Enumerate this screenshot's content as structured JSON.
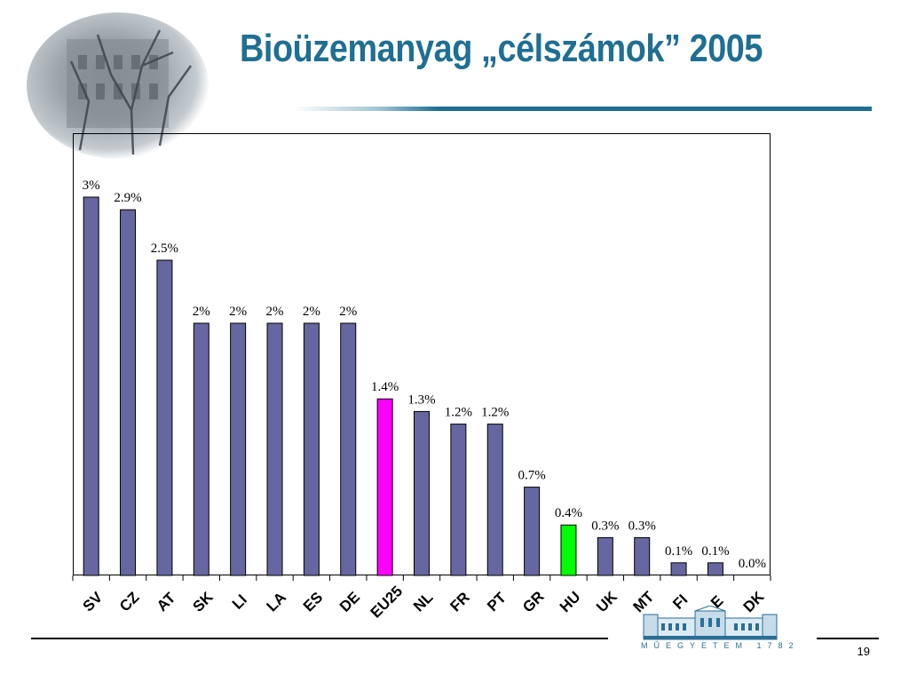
{
  "slide": {
    "title": "Bioüzemanyag „célszámok” 2005",
    "page_number": "19",
    "logo_text": "MŰEGYETEM 1782",
    "images": [
      "building-photo",
      "university-logo"
    ]
  },
  "colors": {
    "title": "#1f6f93",
    "bar_default": "#6666a0",
    "bar_eu25": "#ff00ff",
    "bar_hu": "#00ff00"
  },
  "chart_data": {
    "type": "bar",
    "categories": [
      "SV",
      "CZ",
      "AT",
      "SK",
      "LI",
      "LA",
      "ES",
      "DE",
      "EU25",
      "NL",
      "FR",
      "PT",
      "GR",
      "HU",
      "UK",
      "MT",
      "FI",
      "E",
      "DK"
    ],
    "values": [
      3.0,
      2.9,
      2.5,
      2.0,
      2.0,
      2.0,
      2.0,
      2.0,
      1.4,
      1.3,
      1.2,
      1.2,
      0.7,
      0.4,
      0.3,
      0.3,
      0.1,
      0.1,
      0.0
    ],
    "data_labels": [
      "3%",
      "2.9%",
      "2.5%",
      "2%",
      "2%",
      "2%",
      "2%",
      "2%",
      "1.4%",
      "1.3%",
      "1.2%",
      "1.2%",
      "0.7%",
      "0.4%",
      "0.3%",
      "0.3%",
      "0.1%",
      "0.1%",
      "0.0%"
    ],
    "bar_colors": [
      "#6666a0",
      "#6666a0",
      "#6666a0",
      "#6666a0",
      "#6666a0",
      "#6666a0",
      "#6666a0",
      "#6666a0",
      "#ff00ff",
      "#6666a0",
      "#6666a0",
      "#6666a0",
      "#6666a0",
      "#00ff00",
      "#6666a0",
      "#6666a0",
      "#6666a0",
      "#6666a0",
      "#6666a0"
    ],
    "unit": "%",
    "ylim": [
      0,
      3.0
    ],
    "grid": false,
    "legend": "none"
  }
}
